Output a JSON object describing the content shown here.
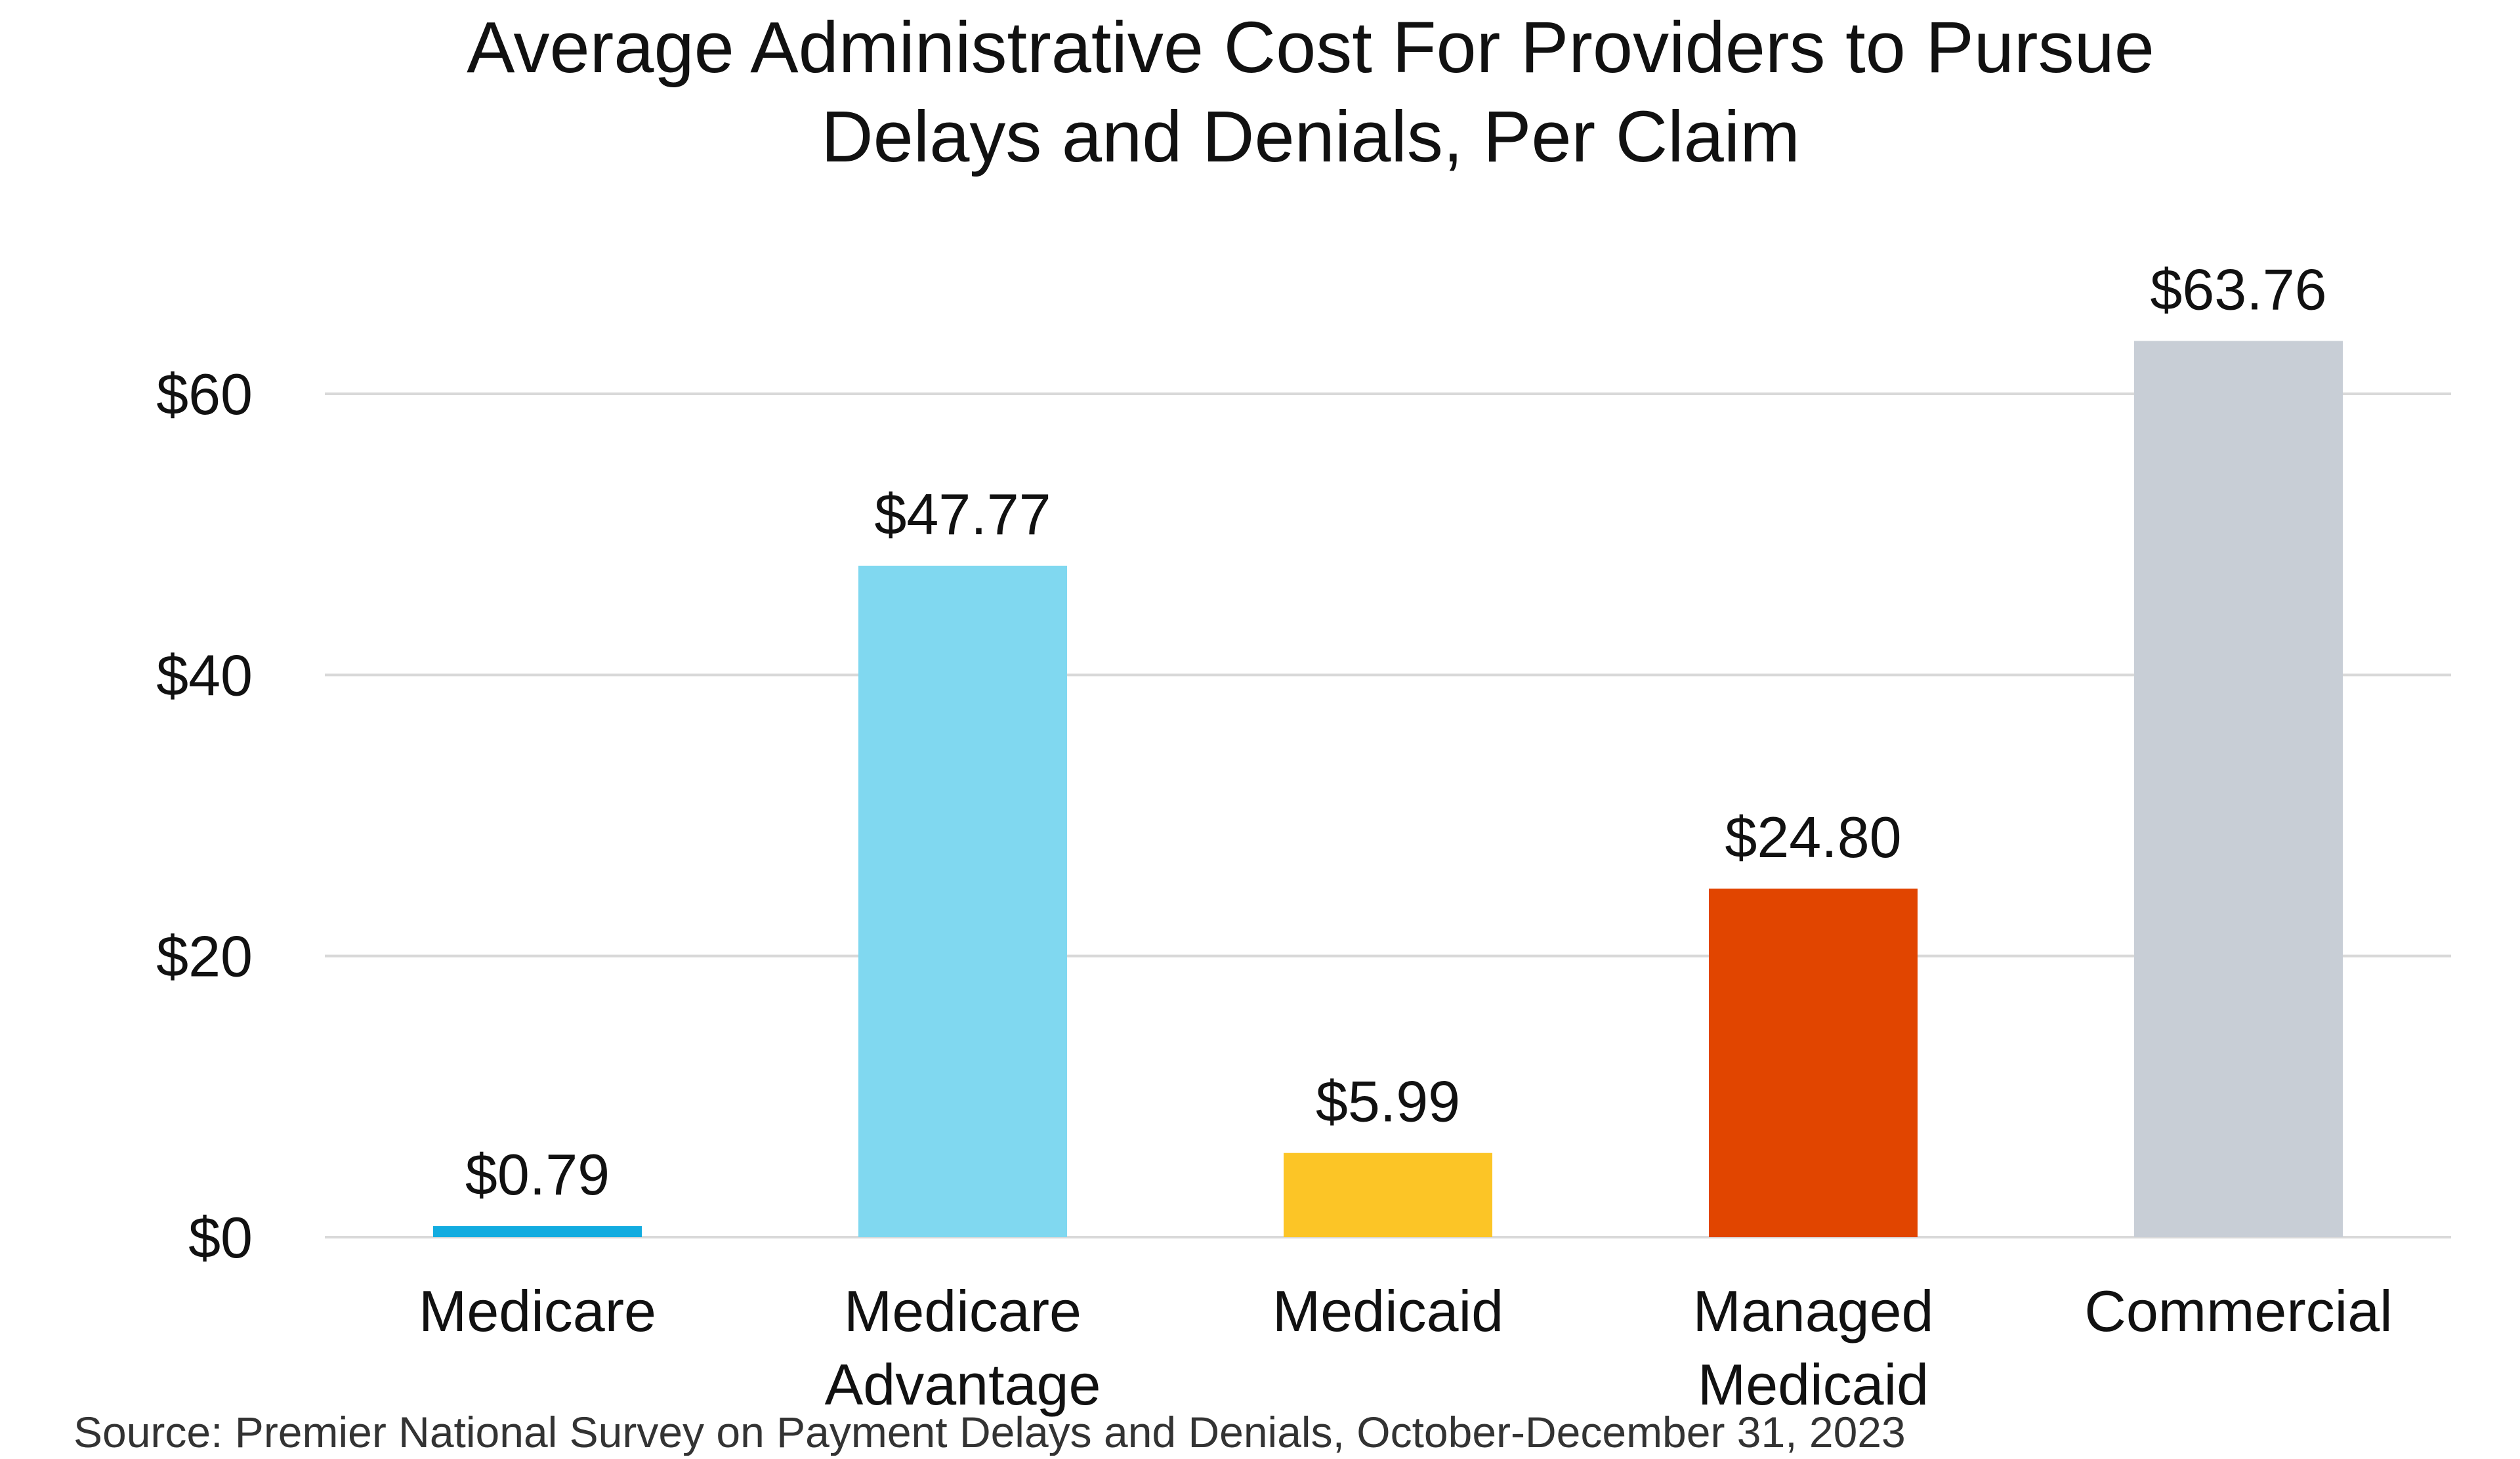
{
  "chart_data": {
    "type": "bar",
    "title_lines": [
      "Average Administrative Cost For Providers to Pursue",
      "Delays and Denials, Per Claim"
    ],
    "categories": [
      [
        "Medicare"
      ],
      [
        "Medicare",
        "Advantage"
      ],
      [
        "Medicaid"
      ],
      [
        "Managed",
        "Medicaid"
      ],
      [
        "Commercial"
      ]
    ],
    "values": [
      0.79,
      47.77,
      5.99,
      24.8,
      63.76
    ],
    "data_labels": [
      "$0.79",
      "$47.77",
      "$5.99",
      "$24.80",
      "$63.76"
    ],
    "colors": [
      "#12ace0",
      "#80d8f0",
      "#fcc526",
      "#e14500",
      "#c8ced6"
    ],
    "ylim": [
      0,
      60
    ],
    "yticks": [
      0,
      20,
      40,
      60
    ],
    "ytick_labels": [
      "$0",
      "$20",
      "$40",
      "$60"
    ],
    "grid": true,
    "gridline_color": "#d9d9d9",
    "xlabel": "",
    "ylabel": "",
    "source": "Source: Premier National Survey on Payment Delays and Denials, October-December 31, 2023"
  }
}
